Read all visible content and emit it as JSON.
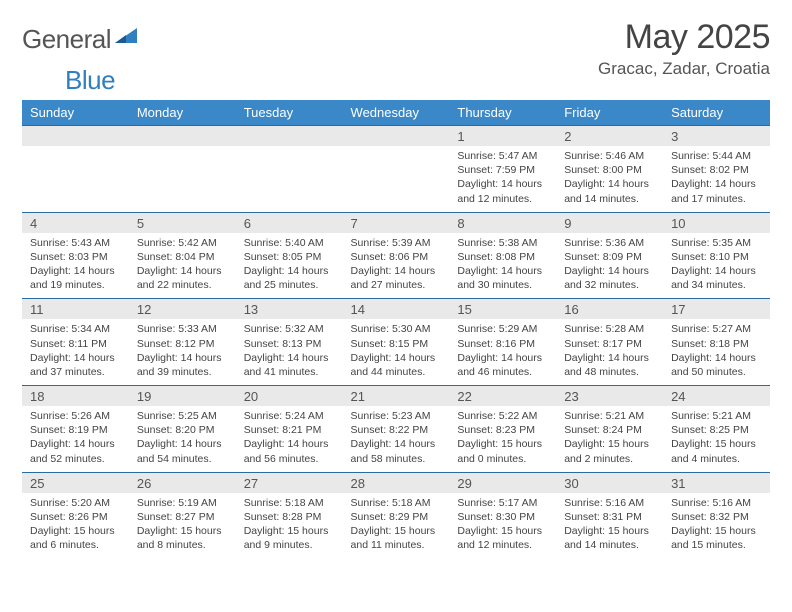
{
  "brand": {
    "text1": "General",
    "text2": "Blue",
    "text1_color": "#555555",
    "text2_color": "#2f7fc1",
    "shape_color": "#2f7fc1"
  },
  "title": "May 2025",
  "location": "Gracac, Zadar, Croatia",
  "colors": {
    "header_bg": "#3a88c8",
    "header_text": "#ffffff",
    "daynum_bg": "#e9e9e9",
    "rule": "#2a6ca0",
    "body_text": "#444444"
  },
  "weekdays": [
    "Sunday",
    "Monday",
    "Tuesday",
    "Wednesday",
    "Thursday",
    "Friday",
    "Saturday"
  ],
  "weeks": [
    [
      null,
      null,
      null,
      null,
      {
        "n": "1",
        "sr": "5:47 AM",
        "ss": "7:59 PM",
        "dl": "14 hours and 12 minutes."
      },
      {
        "n": "2",
        "sr": "5:46 AM",
        "ss": "8:00 PM",
        "dl": "14 hours and 14 minutes."
      },
      {
        "n": "3",
        "sr": "5:44 AM",
        "ss": "8:02 PM",
        "dl": "14 hours and 17 minutes."
      }
    ],
    [
      {
        "n": "4",
        "sr": "5:43 AM",
        "ss": "8:03 PM",
        "dl": "14 hours and 19 minutes."
      },
      {
        "n": "5",
        "sr": "5:42 AM",
        "ss": "8:04 PM",
        "dl": "14 hours and 22 minutes."
      },
      {
        "n": "6",
        "sr": "5:40 AM",
        "ss": "8:05 PM",
        "dl": "14 hours and 25 minutes."
      },
      {
        "n": "7",
        "sr": "5:39 AM",
        "ss": "8:06 PM",
        "dl": "14 hours and 27 minutes."
      },
      {
        "n": "8",
        "sr": "5:38 AM",
        "ss": "8:08 PM",
        "dl": "14 hours and 30 minutes."
      },
      {
        "n": "9",
        "sr": "5:36 AM",
        "ss": "8:09 PM",
        "dl": "14 hours and 32 minutes."
      },
      {
        "n": "10",
        "sr": "5:35 AM",
        "ss": "8:10 PM",
        "dl": "14 hours and 34 minutes."
      }
    ],
    [
      {
        "n": "11",
        "sr": "5:34 AM",
        "ss": "8:11 PM",
        "dl": "14 hours and 37 minutes."
      },
      {
        "n": "12",
        "sr": "5:33 AM",
        "ss": "8:12 PM",
        "dl": "14 hours and 39 minutes."
      },
      {
        "n": "13",
        "sr": "5:32 AM",
        "ss": "8:13 PM",
        "dl": "14 hours and 41 minutes."
      },
      {
        "n": "14",
        "sr": "5:30 AM",
        "ss": "8:15 PM",
        "dl": "14 hours and 44 minutes."
      },
      {
        "n": "15",
        "sr": "5:29 AM",
        "ss": "8:16 PM",
        "dl": "14 hours and 46 minutes."
      },
      {
        "n": "16",
        "sr": "5:28 AM",
        "ss": "8:17 PM",
        "dl": "14 hours and 48 minutes."
      },
      {
        "n": "17",
        "sr": "5:27 AM",
        "ss": "8:18 PM",
        "dl": "14 hours and 50 minutes."
      }
    ],
    [
      {
        "n": "18",
        "sr": "5:26 AM",
        "ss": "8:19 PM",
        "dl": "14 hours and 52 minutes."
      },
      {
        "n": "19",
        "sr": "5:25 AM",
        "ss": "8:20 PM",
        "dl": "14 hours and 54 minutes."
      },
      {
        "n": "20",
        "sr": "5:24 AM",
        "ss": "8:21 PM",
        "dl": "14 hours and 56 minutes."
      },
      {
        "n": "21",
        "sr": "5:23 AM",
        "ss": "8:22 PM",
        "dl": "14 hours and 58 minutes."
      },
      {
        "n": "22",
        "sr": "5:22 AM",
        "ss": "8:23 PM",
        "dl": "15 hours and 0 minutes."
      },
      {
        "n": "23",
        "sr": "5:21 AM",
        "ss": "8:24 PM",
        "dl": "15 hours and 2 minutes."
      },
      {
        "n": "24",
        "sr": "5:21 AM",
        "ss": "8:25 PM",
        "dl": "15 hours and 4 minutes."
      }
    ],
    [
      {
        "n": "25",
        "sr": "5:20 AM",
        "ss": "8:26 PM",
        "dl": "15 hours and 6 minutes."
      },
      {
        "n": "26",
        "sr": "5:19 AM",
        "ss": "8:27 PM",
        "dl": "15 hours and 8 minutes."
      },
      {
        "n": "27",
        "sr": "5:18 AM",
        "ss": "8:28 PM",
        "dl": "15 hours and 9 minutes."
      },
      {
        "n": "28",
        "sr": "5:18 AM",
        "ss": "8:29 PM",
        "dl": "15 hours and 11 minutes."
      },
      {
        "n": "29",
        "sr": "5:17 AM",
        "ss": "8:30 PM",
        "dl": "15 hours and 12 minutes."
      },
      {
        "n": "30",
        "sr": "5:16 AM",
        "ss": "8:31 PM",
        "dl": "15 hours and 14 minutes."
      },
      {
        "n": "31",
        "sr": "5:16 AM",
        "ss": "8:32 PM",
        "dl": "15 hours and 15 minutes."
      }
    ]
  ],
  "labels": {
    "sunrise": "Sunrise: ",
    "sunset": "Sunset: ",
    "daylight": "Daylight: "
  }
}
